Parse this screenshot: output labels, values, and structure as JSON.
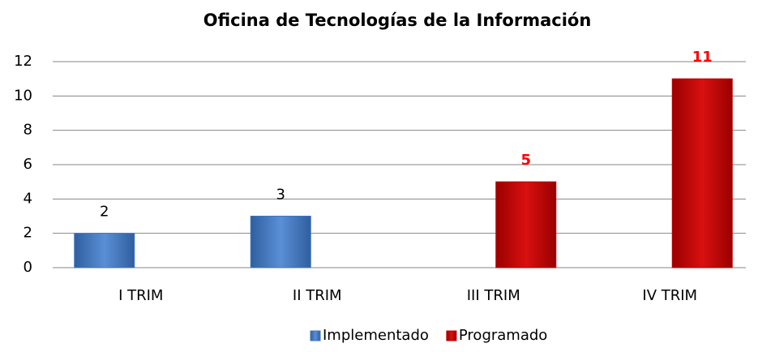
{
  "chart_data": {
    "type": "bar",
    "title": "Oficina de Tecnologías de la Información",
    "categories": [
      "I TRIM",
      "II TRIM",
      "III TRIM",
      "IV TRIM"
    ],
    "series": [
      {
        "name": "Implementado",
        "color": "#3f75bf",
        "values": [
          2,
          3,
          null,
          null
        ]
      },
      {
        "name": "Programado",
        "color": "#c00000",
        "values": [
          null,
          null,
          5,
          11
        ]
      }
    ],
    "ylim": [
      0,
      12
    ],
    "yticks": [
      0,
      2,
      4,
      6,
      8,
      10,
      12
    ],
    "grid": true,
    "legend": "bottom"
  }
}
